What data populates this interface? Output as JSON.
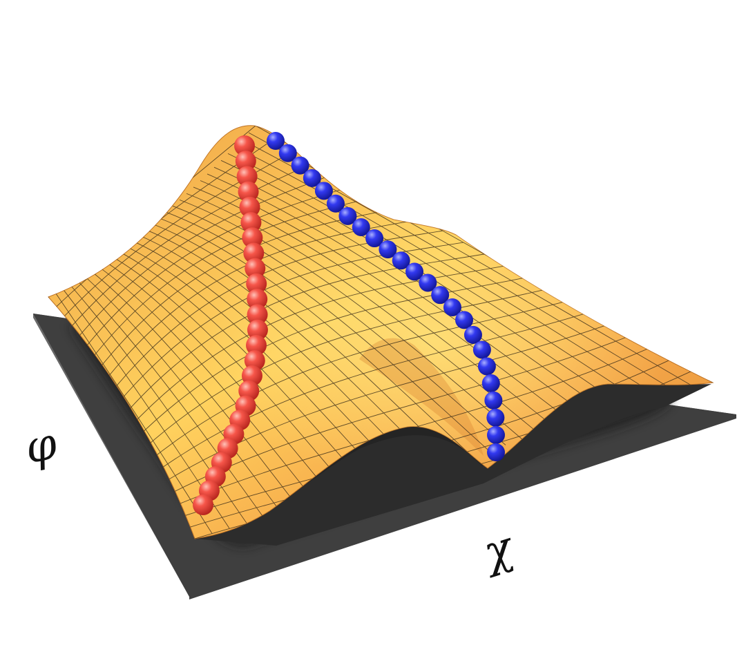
{
  "figure": {
    "axis_phi_label": "φ",
    "axis_chi_label": "χ"
  },
  "colors": {
    "surface_light": "#ffd25e",
    "surface_mid": "#f6a84a",
    "surface_dark": "#d9822c",
    "grid_line": "#2a2115",
    "floor": "#5f5f5f",
    "floor_edge": "#3f3f3f",
    "shadow": "#2a2a2a",
    "red_ball": "#f0453a",
    "red_ball_highlight": "#ffb0a6",
    "blue_ball": "#2a2fe8",
    "blue_ball_highlight": "#9aa0ff"
  },
  "chains": [
    {
      "name": "red-chain",
      "color_key": "red_ball",
      "bead_count": 25
    },
    {
      "name": "blue-chain",
      "color_key": "blue_ball",
      "bead_count": 24
    }
  ]
}
